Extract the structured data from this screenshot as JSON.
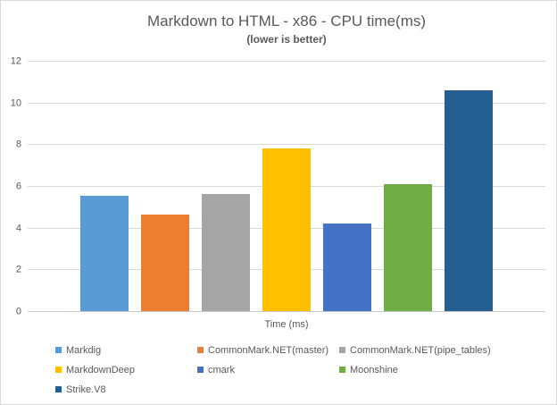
{
  "window": {
    "background": "#ffffff",
    "border_color": "#d9d9d9",
    "text_color": "#595959"
  },
  "chart_data": {
    "type": "bar",
    "title": "Markdown to HTML - x86 - CPU time(ms)",
    "subtitle": "(lower is better)",
    "xlabel": "Time (ms)",
    "ylabel": "",
    "ylim": [
      0,
      12
    ],
    "yticks": [
      0,
      2,
      4,
      6,
      8,
      10,
      12
    ],
    "grid": true,
    "legend_position": "bottom",
    "categories": [
      "Markdig",
      "CommonMark.NET(master)",
      "CommonMark.NET(pipe_tables)",
      "MarkdownDeep",
      "cmark",
      "Moonshine",
      "Strike.V8"
    ],
    "values": [
      5.55,
      4.65,
      5.6,
      7.8,
      4.2,
      6.1,
      10.6
    ],
    "colors": [
      "#5b9bd5",
      "#ed7d31",
      "#a5a5a5",
      "#ffc000",
      "#4472c4",
      "#70ad47",
      "#255e91"
    ],
    "gridline_color": "#d9d9d9",
    "axis_line_color": "#c8c8c8"
  }
}
